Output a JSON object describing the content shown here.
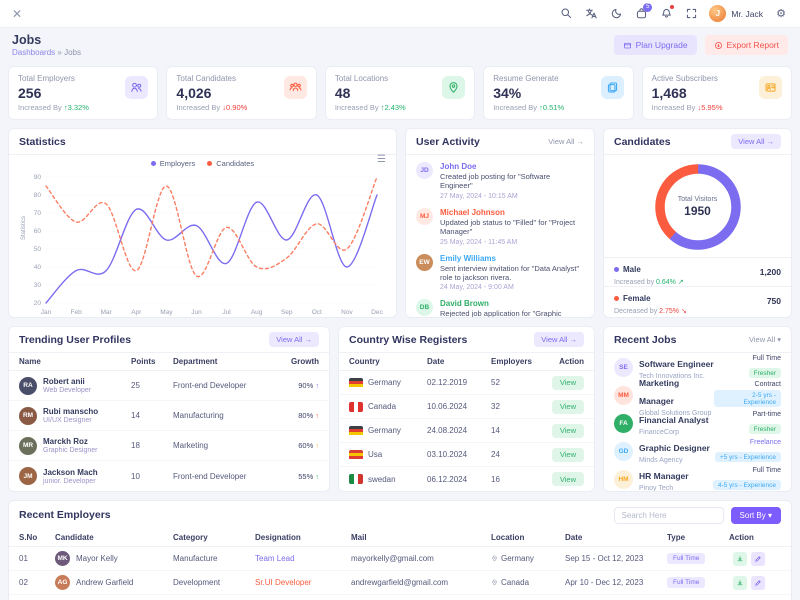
{
  "navbar": {
    "user_name": "Mr. Jack",
    "cart_badge": "5",
    "avatar_initial": "J"
  },
  "page_header": {
    "title": "Jobs",
    "breadcrumb_root": "Dashboards",
    "breadcrumb_sep": "»",
    "breadcrumb_current": "Jobs",
    "plan_upgrade_label": "Plan Upgrade",
    "export_report_label": "Export Report"
  },
  "stats": [
    {
      "label": "Total Employers",
      "value": "256",
      "change_text": "Increased By",
      "change_arrow": "↑",
      "change_value": "3.32%",
      "change_color": "#23b26d",
      "icon_color": "#7b6cf0",
      "icon_bg": "#ece8ff"
    },
    {
      "label": "Total Candidates",
      "value": "4,026",
      "change_text": "Increased By",
      "change_arrow": "↓",
      "change_value": "0.90%",
      "change_color": "#f1403c",
      "icon_color": "#fb5c3f",
      "icon_bg": "#ffe9e2"
    },
    {
      "label": "Total Locations",
      "value": "48",
      "change_text": "Increased By",
      "change_arrow": "↑",
      "change_value": "2.43%",
      "change_color": "#23b26d",
      "icon_color": "#2fae67",
      "icon_bg": "#dcf7e8"
    },
    {
      "label": "Resume Generate",
      "value": "34%",
      "change_text": "Increased By",
      "change_arrow": "↑",
      "change_value": "0.51%",
      "change_color": "#23b26d",
      "icon_color": "#3da9f5",
      "icon_bg": "#dbeffe"
    },
    {
      "label": "Active Subscribers",
      "value": "1,468",
      "change_text": "Increased By",
      "change_arrow": "↓",
      "change_value": "5.95%",
      "change_color": "#f1403c",
      "icon_color": "#f6a723",
      "icon_bg": "#fdf0d9"
    }
  ],
  "statistics_panel": {
    "title": "Statistics",
    "legend": [
      {
        "label": "Employers",
        "color": "#7b6cf0"
      },
      {
        "label": "Candidates",
        "color": "#fb5c3f"
      }
    ]
  },
  "user_activity": {
    "title": "User Activity",
    "view_all": "View All →",
    "items": [
      {
        "initials": "JD",
        "avatar_bg": "#ece8ff",
        "avatar_color": "#7b6cf0",
        "name": "John Doe",
        "name_color": "#7b6cf0",
        "desc": "Created job posting for \"Software Engineer\"",
        "date": "27 May, 2024 - 10:15 AM"
      },
      {
        "initials": "MJ",
        "avatar_bg": "#ffe9e2",
        "avatar_color": "#fb5c3f",
        "name": "Michael Johnson",
        "name_color": "#fb5c3f",
        "desc": "Updated job status to \"Filled\" for \"Project Manager\"",
        "date": "25 May, 2024 - 11:45 AM"
      },
      {
        "initials": "EW",
        "avatar_bg": "#c98c5a",
        "avatar_color": "#ffffff",
        "name": "Emily Williams",
        "name_color": "#3da9f5",
        "desc": "Sent interview invitation for \"Data Analyst\" role to jackson rivera.",
        "date": "24 May, 2024 - 9:00 AM"
      },
      {
        "initials": "DB",
        "avatar_bg": "#dcf7e8",
        "avatar_color": "#2fae67",
        "name": "David Brown",
        "name_color": "#2fae67",
        "desc": "Rejected job application for \"Graphic Designer\"",
        "date": "23 May, 2024 - 03:20 PM"
      }
    ]
  },
  "candidates": {
    "title": "Candidates",
    "view_all": "View All →",
    "center_label": "Total Visitors",
    "center_value": "1950",
    "legend": [
      {
        "label": "Male",
        "dot": "#7b6cf0",
        "trend_text": "Increased by",
        "trend_value": "0.64%",
        "trend_icon": "↗",
        "trend_color": "#23b26d",
        "value": "1,200"
      },
      {
        "label": "Female",
        "dot": "#fb5c3f",
        "trend_text": "Decreased by",
        "trend_value": "2.75%",
        "trend_icon": "↘",
        "trend_color": "#f1403c",
        "value": "750"
      }
    ]
  },
  "trending": {
    "title": "Trending User Profiles",
    "view_all": "View All →",
    "columns": [
      "Name",
      "Points",
      "Department",
      "Growth"
    ],
    "rows": [
      {
        "initials": "RA",
        "avatar_bg": "#4a4e69",
        "name": "Robert anii",
        "role": "Web Developer",
        "points": "25",
        "department": "Front-end Developer",
        "growth": "90%",
        "arrow": "↑",
        "bar_width": "90%",
        "bar_color": "#7b6cf0"
      },
      {
        "initials": "RM",
        "avatar_bg": "#8a5a44",
        "name": "Rubi manscho",
        "role": "UI/UX Designer",
        "points": "14",
        "department": "Manufacturing",
        "growth": "80%",
        "arrow": "↑",
        "bar_width": "80%",
        "bar_color": "#fb5c3f"
      },
      {
        "initials": "MR",
        "avatar_bg": "#6b705c",
        "name": "Marckh Roz",
        "role": "Graphic Designer",
        "points": "18",
        "department": "Marketing",
        "growth": "60%",
        "arrow": "↑",
        "bar_width": "60%",
        "bar_color": "#f6a723"
      },
      {
        "initials": "JM",
        "avatar_bg": "#9c6644",
        "name": "Jackson Mach",
        "role": "junior. Developer",
        "points": "10",
        "department": "Front-end Developer",
        "growth": "55%",
        "arrow": "↑",
        "bar_width": "55%",
        "bar_color": "#2fae67"
      }
    ]
  },
  "country": {
    "title": "Country Wise Registers",
    "view_all": "View All →",
    "view_label": "View",
    "columns": [
      "Country",
      "Date",
      "Employers",
      "Action"
    ],
    "rows": [
      {
        "name": "Germany",
        "date": "02.12.2019",
        "employers": "52",
        "flag": [
          "#3d3f45",
          "#e0412e",
          "#f6c500"
        ],
        "flag_dir": "h"
      },
      {
        "name": "Canada",
        "date": "10.06.2024",
        "employers": "32",
        "flag": [
          "#e03131",
          "#ffffff",
          "#e03131"
        ],
        "flag_dir": "v"
      },
      {
        "name": "Germany",
        "date": "24.08.2024",
        "employers": "14",
        "flag": [
          "#3d3f45",
          "#e0412e",
          "#f6c500"
        ],
        "flag_dir": "h"
      },
      {
        "name": "Usa",
        "date": "03.10.2024",
        "employers": "24",
        "flag": [
          "#dd3c32",
          "#f6c500",
          "#dd3c32"
        ],
        "flag_dir": "h"
      },
      {
        "name": "swedan",
        "date": "06.12.2024",
        "employers": "16",
        "flag": [
          "#1c8a43",
          "#ffffff",
          "#d13330"
        ],
        "flag_dir": "v"
      }
    ]
  },
  "recent_jobs": {
    "title": "Recent Jobs",
    "view_all": "View All ▾",
    "items": [
      {
        "initials": "SE",
        "avatar_bg": "#ece8ff",
        "avatar_color": "#7b6cf0",
        "name": "Software Engineer",
        "company": "Tech Innovations Inc.",
        "type": "Full Time",
        "type_color": "#3f4468",
        "badge": "Fresher",
        "badge_bg": "#def7e9",
        "badge_color": "#2fae67"
      },
      {
        "initials": "MM",
        "avatar_bg": "#ffe4dd",
        "avatar_color": "#fb5c3f",
        "name": "Marketing Manager",
        "company": "Global Solutions Group",
        "type": "Contract",
        "type_color": "#3f4468",
        "badge": "2-5 yrs - Experience",
        "badge_bg": "#dff1fe",
        "badge_color": "#3da9f5"
      },
      {
        "initials": "FA",
        "avatar_bg": "#2fae67",
        "avatar_color": "#ffffff",
        "name": "Financial Analyst",
        "company": "FinanceCorp",
        "type": "Part-time",
        "type_color": "#3f4468",
        "badge": "Fresher",
        "badge_bg": "#def7e9",
        "badge_color": "#2fae67"
      },
      {
        "initials": "GD",
        "avatar_bg": "#dff1fe",
        "avatar_color": "#3da9f5",
        "name": "Graphic Designer",
        "company": "Minds Agency",
        "type": "Freelance",
        "type_color": "#7b6cf0",
        "badge": "+5 yrs - Experience",
        "badge_bg": "#dff1fe",
        "badge_color": "#3da9f5"
      },
      {
        "initials": "HM",
        "avatar_bg": "#fdf0d9",
        "avatar_color": "#f6a723",
        "name": "HR Manager",
        "company": "Pinoy Tech",
        "type": "Full Time",
        "type_color": "#3f4468",
        "badge": "4-5 yrs - Experience",
        "badge_bg": "#dff1fe",
        "badge_color": "#3da9f5"
      }
    ]
  },
  "recent_employers": {
    "title": "Recent Employers",
    "search_placeholder": "Search Here",
    "sort_label": "Sort By ▾",
    "columns": [
      "S.No",
      "Candidate",
      "Category",
      "Designation",
      "Mail",
      "Location",
      "Date",
      "Type",
      "Action"
    ],
    "rows": [
      {
        "sno": "01",
        "initials": "MK",
        "avatar_bg": "#6d597a",
        "name": "Mayor Kelly",
        "category": "Manufacture",
        "designation": "Team Lead",
        "designation_color": "#7b6cf0",
        "mail": "mayorkelly@gmail.com",
        "location": "Germany",
        "date": "Sep 15 - Oct 12, 2023",
        "type": "Full Time",
        "type_bg": "#ece8ff",
        "type_color": "#7b6cf0"
      },
      {
        "sno": "02",
        "initials": "AG",
        "avatar_bg": "#c77b58",
        "name": "Andrew Garfield",
        "category": "Development",
        "designation": "Sr.UI Developer",
        "designation_color": "#fb5c3f",
        "mail": "andrewgarfield@gmail.com",
        "location": "Canada",
        "date": "Apr 10 - Dec 12, 2023",
        "type": "Full Time",
        "type_bg": "#ece8ff",
        "type_color": "#7b6cf0"
      },
      {
        "sno": "",
        "initials": "",
        "avatar_bg": "#e07a5f",
        "name": "",
        "category": "",
        "designation": "",
        "designation_color": "#3f4468",
        "mail": "",
        "location": "",
        "date": "",
        "type": "",
        "type_bg": "#ffe3ea",
        "type_color": "#ef4878"
      }
    ]
  },
  "chart_data": [
    {
      "type": "line",
      "title": "Statistics",
      "ylabel": "Statistics",
      "grid": true,
      "legend_position": "top",
      "x": [
        "Jan",
        "Feb",
        "Mar",
        "Apr",
        "May",
        "Jun",
        "Jul",
        "Aug",
        "Sep",
        "Oct",
        "Nov",
        "Dec"
      ],
      "ylim": [
        20,
        90
      ],
      "yticks": [
        20,
        30,
        40,
        50,
        60,
        70,
        80,
        90
      ],
      "series": [
        {
          "name": "Employers",
          "color": "#7b6cf0",
          "style": "solid",
          "values": [
            20,
            38,
            38,
            72,
            55,
            63,
            42,
            76,
            55,
            80,
            40,
            80
          ]
        },
        {
          "name": "Candidates",
          "color": "#fb7d62",
          "style": "dashed",
          "values": [
            85,
            65,
            75,
            38,
            85,
            35,
            62,
            40,
            45,
            64,
            50,
            90
          ]
        }
      ]
    },
    {
      "type": "pie",
      "title": "Candidates",
      "center_label": "Total Visitors",
      "center_value": 1950,
      "slices": [
        {
          "label": "Male",
          "value": 1200,
          "color": "#7b6cf0"
        },
        {
          "label": "Female",
          "value": 750,
          "color": "#fb5c3f"
        }
      ]
    }
  ]
}
